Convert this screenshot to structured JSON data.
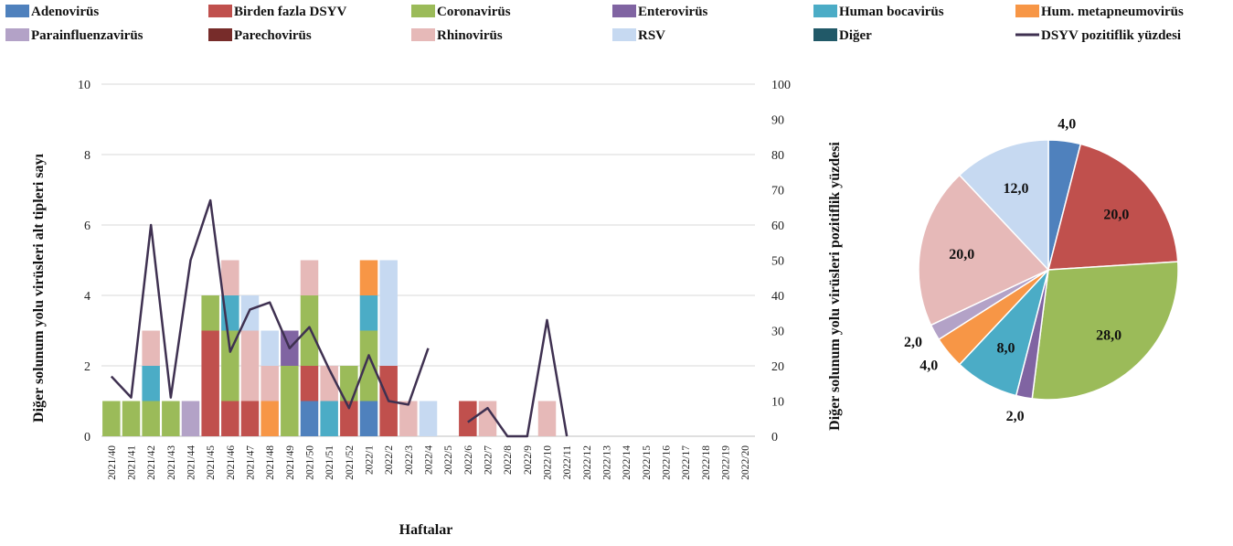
{
  "colors": {
    "Adenovirüs": "#4F81BD",
    "Birden fazla DSYV": "#C0504D",
    "Coronavirüs": "#9BBB59",
    "Enterovirüs": "#8064A2",
    "Human bocavirüs": "#4BACC6",
    "Hum. metapneumovirüs": "#F79646",
    "Parainfluenzavirüs": "#B3A2C7",
    "Parechovirüs": "#772C2A",
    "Rhinovirüs": "#E6B9B8",
    "RSV": "#C6D9F1",
    "Diğer": "#215968",
    "DSYV pozitiflik yüzdesi": "#3F3151"
  },
  "legend": [
    {
      "label": "Adenovirüs",
      "kind": "box"
    },
    {
      "label": "Birden fazla DSYV",
      "kind": "box"
    },
    {
      "label": "Coronavirüs",
      "kind": "box"
    },
    {
      "label": "Enterovirüs",
      "kind": "box"
    },
    {
      "label": "Human bocavirüs",
      "kind": "box"
    },
    {
      "label": "Hum. metapneumovirüs",
      "kind": "box"
    },
    {
      "label": "Parainfluenzavirüs",
      "kind": "box"
    },
    {
      "label": "Parechovirüs",
      "kind": "box"
    },
    {
      "label": "Rhinovirüs",
      "kind": "box"
    },
    {
      "label": "RSV",
      "kind": "box"
    },
    {
      "label": "Diğer",
      "kind": "box"
    },
    {
      "label": "DSYV pozitiflik yüzdesi",
      "kind": "line"
    }
  ],
  "chart_data": [
    {
      "type": "bar",
      "stacked": true,
      "xlabel": "Haftalar",
      "ylabel": "Diğer solunum yolu virüsleri alt tipleri sayı",
      "y2label": "Diğer solunum yolu virüsleri pozitiflik yüzdesi",
      "ylim": [
        0,
        10
      ],
      "yticks": [
        0,
        2,
        4,
        6,
        8,
        10
      ],
      "y2lim": [
        0,
        100
      ],
      "y2ticks": [
        0,
        10,
        20,
        30,
        40,
        50,
        60,
        70,
        80,
        90,
        100
      ],
      "grid": true,
      "legend_position": "top",
      "categories": [
        "2021/40",
        "2021/41",
        "2021/42",
        "2021/43",
        "2021/44",
        "2021/45",
        "2021/46",
        "2021/47",
        "2021/48",
        "2021/49",
        "2021/50",
        "2021/51",
        "2021/52",
        "2022/1",
        "2022/2",
        "2022/3",
        "2022/4",
        "2022/5",
        "2022/6",
        "2022/7",
        "2022/8",
        "2022/9",
        "2022/10",
        "2022/11",
        "2022/12",
        "2022/13",
        "2022/14",
        "2022/15",
        "2022/16",
        "2022/17",
        "2022/18",
        "2022/19",
        "2022/20"
      ],
      "series": [
        {
          "name": "Adenovirüs",
          "values": [
            0,
            0,
            0,
            0,
            0,
            0,
            0,
            0,
            0,
            0,
            1,
            0,
            0,
            1,
            0,
            0,
            0,
            0,
            0,
            0,
            0,
            0,
            0,
            0,
            0,
            0,
            0,
            0,
            0,
            0,
            0,
            0,
            0
          ]
        },
        {
          "name": "Birden fazla DSYV",
          "values": [
            0,
            0,
            0,
            0,
            0,
            3,
            1,
            1,
            0,
            0,
            1,
            0,
            1,
            0,
            2,
            0,
            0,
            0,
            1,
            0,
            0,
            0,
            0,
            0,
            0,
            0,
            0,
            0,
            0,
            0,
            0,
            0,
            0
          ]
        },
        {
          "name": "Coronavirüs",
          "values": [
            1,
            1,
            1,
            1,
            0,
            1,
            2,
            0,
            0,
            2,
            2,
            0,
            1,
            2,
            0,
            0,
            0,
            0,
            0,
            0,
            0,
            0,
            0,
            0,
            0,
            0,
            0,
            0,
            0,
            0,
            0,
            0,
            0
          ]
        },
        {
          "name": "Enterovirüs",
          "values": [
            0,
            0,
            0,
            0,
            0,
            0,
            0,
            0,
            0,
            1,
            0,
            0,
            0,
            0,
            0,
            0,
            0,
            0,
            0,
            0,
            0,
            0,
            0,
            0,
            0,
            0,
            0,
            0,
            0,
            0,
            0,
            0,
            0
          ]
        },
        {
          "name": "Human bocavirüs",
          "values": [
            0,
            0,
            1,
            0,
            0,
            0,
            1,
            0,
            0,
            0,
            0,
            1,
            0,
            1,
            0,
            0,
            0,
            0,
            0,
            0,
            0,
            0,
            0,
            0,
            0,
            0,
            0,
            0,
            0,
            0,
            0,
            0,
            0
          ]
        },
        {
          "name": "Hum. metapneumovirüs",
          "values": [
            0,
            0,
            0,
            0,
            0,
            0,
            0,
            0,
            1,
            0,
            0,
            0,
            0,
            1,
            0,
            0,
            0,
            0,
            0,
            0,
            0,
            0,
            0,
            0,
            0,
            0,
            0,
            0,
            0,
            0,
            0,
            0,
            0
          ]
        },
        {
          "name": "Parainfluenzavirüs",
          "values": [
            0,
            0,
            0,
            0,
            1,
            0,
            0,
            0,
            0,
            0,
            0,
            0,
            0,
            0,
            0,
            0,
            0,
            0,
            0,
            0,
            0,
            0,
            0,
            0,
            0,
            0,
            0,
            0,
            0,
            0,
            0,
            0,
            0
          ]
        },
        {
          "name": "Parechovirüs",
          "values": [
            0,
            0,
            0,
            0,
            0,
            0,
            0,
            0,
            0,
            0,
            0,
            0,
            0,
            0,
            0,
            0,
            0,
            0,
            0,
            0,
            0,
            0,
            0,
            0,
            0,
            0,
            0,
            0,
            0,
            0,
            0,
            0,
            0
          ]
        },
        {
          "name": "Rhinovirüs",
          "values": [
            0,
            0,
            1,
            0,
            0,
            0,
            1,
            2,
            1,
            0,
            1,
            1,
            0,
            0,
            0,
            1,
            0,
            0,
            0,
            1,
            0,
            0,
            1,
            0,
            0,
            0,
            0,
            0,
            0,
            0,
            0,
            0,
            0
          ]
        },
        {
          "name": "RSV",
          "values": [
            0,
            0,
            0,
            0,
            0,
            0,
            0,
            1,
            1,
            0,
            0,
            0,
            0,
            0,
            3,
            0,
            1,
            0,
            0,
            0,
            0,
            0,
            0,
            0,
            0,
            0,
            0,
            0,
            0,
            0,
            0,
            0,
            0
          ]
        },
        {
          "name": "Diğer",
          "values": [
            0,
            0,
            0,
            0,
            0,
            0,
            0,
            0,
            0,
            0,
            0,
            0,
            0,
            0,
            0,
            0,
            0,
            0,
            0,
            0,
            0,
            0,
            0,
            0,
            0,
            0,
            0,
            0,
            0,
            0,
            0,
            0,
            0
          ]
        }
      ],
      "line": {
        "name": "DSYV pozitiflik yüzdesi",
        "axis": "right",
        "values": [
          17,
          11,
          60,
          11,
          50,
          67,
          24,
          36,
          38,
          25,
          31,
          19,
          8,
          23,
          10,
          9,
          25,
          null,
          4,
          8,
          0,
          0,
          33,
          0,
          null,
          null,
          null,
          null,
          null,
          null,
          null,
          null,
          null
        ]
      }
    },
    {
      "type": "pie",
      "labels": [
        "Adenovirüs",
        "Birden fazla DSYV",
        "Coronavirüs",
        "Enterovirüs",
        "Human bocavirüs",
        "Hum. metapneumovirüs",
        "Parainfluenzavirüs",
        "Rhinovirüs",
        "RSV"
      ],
      "values": [
        4.0,
        20.0,
        28.0,
        2.0,
        8.0,
        4.0,
        2.0,
        20.0,
        12.0
      ],
      "value_labels": [
        "4,0",
        "20,0",
        "28,0",
        "2,0",
        "8,0",
        "4,0",
        "2,0",
        "20,0",
        "12,0"
      ]
    }
  ]
}
